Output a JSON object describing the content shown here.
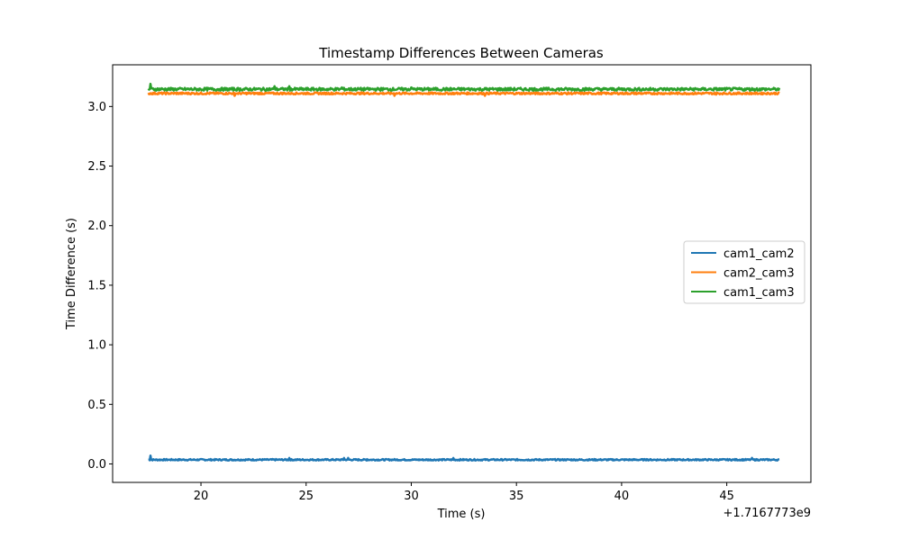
{
  "chart_data": {
    "type": "line",
    "title": "Timestamp Differences Between Cameras",
    "xlabel": "Time (s)",
    "ylabel": "Time Difference (s)",
    "x_offset_label": "+1.7167773e9",
    "xlim": [
      15.8,
      49.0
    ],
    "ylim": [
      -0.155,
      3.35
    ],
    "xticks": [
      20,
      25,
      30,
      35,
      40,
      45
    ],
    "yticks": [
      0.0,
      0.5,
      1.0,
      1.5,
      2.0,
      2.5,
      3.0
    ],
    "ytick_labels": [
      "0.0",
      "0.5",
      "1.0",
      "1.5",
      "2.0",
      "2.5",
      "3.0"
    ],
    "x_start": 17.5,
    "x_end": 47.5,
    "legend_position": "center right",
    "series": [
      {
        "name": "cam1_cam2",
        "color": "#1f77b4",
        "base": 0.035,
        "noise": 0.006,
        "spikes": [
          [
            17.6,
            0.07
          ],
          [
            24.2,
            0.05
          ],
          [
            26.8,
            0.05
          ],
          [
            27.0,
            0.05
          ],
          [
            27.9,
            0.04
          ],
          [
            32.0,
            0.05
          ],
          [
            34.5,
            0.04
          ],
          [
            41.2,
            0.04
          ],
          [
            46.2,
            0.05
          ]
        ]
      },
      {
        "name": "cam2_cam3",
        "color": "#ff7f0e",
        "base": 3.11,
        "noise": 0.008,
        "spikes": [
          [
            21.6,
            3.09
          ],
          [
            29.2,
            3.09
          ],
          [
            33.5,
            3.09
          ],
          [
            44.5,
            3.1
          ]
        ]
      },
      {
        "name": "cam1_cam3",
        "color": "#2ca02c",
        "base": 3.145,
        "noise": 0.012,
        "spikes": [
          [
            17.6,
            3.19
          ],
          [
            23.5,
            3.17
          ],
          [
            24.2,
            3.17
          ],
          [
            26.7,
            3.16
          ],
          [
            30.0,
            3.16
          ]
        ]
      }
    ]
  }
}
